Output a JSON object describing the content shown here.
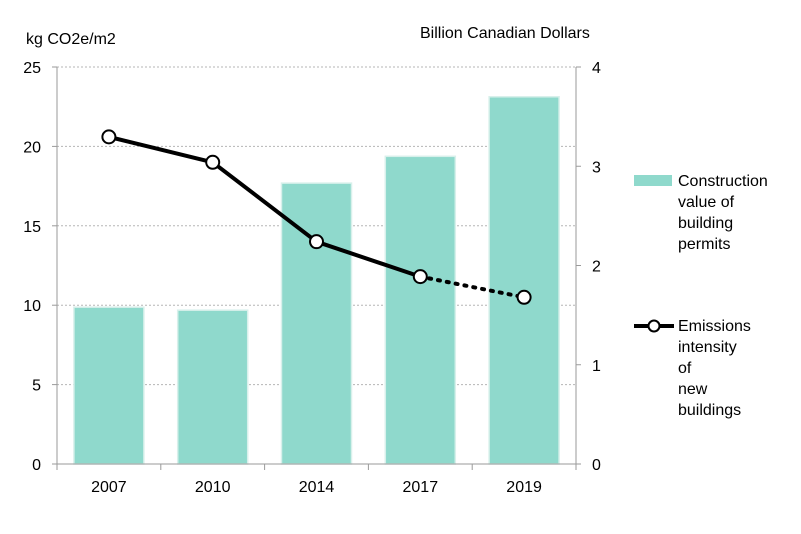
{
  "chart_data": {
    "type": "bar",
    "categories": [
      "2007",
      "2010",
      "2014",
      "2017",
      "2019"
    ],
    "left_axis": {
      "title": "kg CO2e/m2",
      "ylim": [
        0,
        25
      ],
      "ticks": [
        "0",
        "5",
        "10",
        "15",
        "20",
        "25"
      ]
    },
    "right_axis": {
      "title": "Billion Canadian Dollars",
      "ylim": [
        0,
        4
      ],
      "ticks": [
        "0",
        "1",
        "2",
        "3",
        "4"
      ]
    },
    "series": [
      {
        "name": "Construction value of building permits",
        "type": "bar",
        "axis": "right",
        "color": "#8fd9cc",
        "values": [
          1.58,
          1.55,
          2.83,
          3.1,
          3.7
        ]
      },
      {
        "name": "Emissions intensity of new buildings",
        "type": "line",
        "axis": "left",
        "color": "#000000",
        "projected_from_index": 3,
        "values": [
          20.6,
          19.0,
          14.0,
          11.8,
          10.5
        ]
      }
    ],
    "grid": "horizontal dashed",
    "legend": "right"
  },
  "legend": {
    "bar_label": "Construction\nvalue of\nbuilding\npermits",
    "line_label": "Emissions\nintensity of\nnew buildings"
  }
}
